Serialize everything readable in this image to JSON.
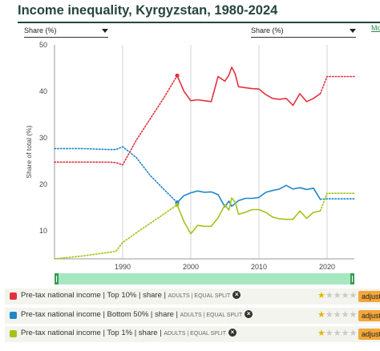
{
  "title": "Income inequality, Kyrgyzstan, 1980-2024",
  "selectors": {
    "left": "Share (%)",
    "right": "Share (%)",
    "more": "Mo"
  },
  "chart_data": {
    "type": "line",
    "ylabel": "Share of total (%)",
    "xlim": [
      1980,
      2024
    ],
    "ylim": [
      4,
      50
    ],
    "xticks": [
      1990,
      2000,
      2010,
      2020
    ],
    "yticks": [
      10,
      20,
      30,
      40,
      50
    ],
    "grid": "vertical",
    "series": [
      {
        "name": "Top 10%",
        "color": "#e0323e",
        "dotted_x": [
          1980,
          1982,
          1984,
          1986,
          1988,
          1989,
          1990,
          1992,
          1994,
          1996,
          1998
        ],
        "dotted_y": [
          24.8,
          24.8,
          24.8,
          24.8,
          24.8,
          24.7,
          24.2,
          29.5,
          34.0,
          38.5,
          43.4
        ],
        "solid_x": [
          1998,
          1999,
          2000,
          2001,
          2002,
          2003,
          2004,
          2005,
          2005.6,
          2006,
          2006.5,
          2007,
          2008,
          2009,
          2010,
          2011,
          2012,
          2013,
          2014,
          2015,
          2016,
          2017,
          2018,
          2019
        ],
        "solid_y": [
          43.4,
          40.0,
          38.0,
          38.2,
          38.0,
          37.8,
          43.2,
          42.2,
          43.5,
          45.2,
          43.8,
          41.0,
          40.8,
          40.6,
          40.5,
          39.3,
          38.5,
          38.3,
          38.5,
          37.0,
          39.5,
          37.8,
          38.5,
          39.5
        ],
        "tail_x": [
          2019,
          2020,
          2024
        ],
        "tail_y": [
          39.5,
          43.2,
          43.2
        ],
        "marker": {
          "x": 1998,
          "y": 43.4
        }
      },
      {
        "name": "Bottom 50%",
        "color": "#1f86c9",
        "dotted_x": [
          1980,
          1982,
          1984,
          1986,
          1988,
          1989,
          1990,
          1992,
          1994,
          1996,
          1998
        ],
        "dotted_y": [
          27.7,
          27.7,
          27.7,
          27.6,
          27.5,
          27.5,
          28.1,
          25.8,
          22.0,
          19.0,
          16.1
        ],
        "solid_x": [
          1998,
          1999,
          2000,
          2001,
          2002,
          2003,
          2004,
          2005,
          2005.6,
          2006,
          2007,
          2008,
          2009,
          2010,
          2011,
          2012,
          2013,
          2014,
          2015,
          2016,
          2017,
          2018,
          2019
        ],
        "solid_y": [
          16.1,
          17.6,
          18.2,
          18.6,
          18.3,
          18.4,
          17.8,
          15.2,
          16.4,
          15.3,
          16.5,
          17.0,
          17.0,
          17.2,
          18.3,
          18.7,
          19.0,
          19.8,
          19.0,
          19.3,
          18.9,
          19.2,
          16.8
        ],
        "tail_x": [
          2019,
          2020,
          2024
        ],
        "tail_y": [
          16.8,
          16.9,
          16.9
        ],
        "marker": {
          "x": 1998,
          "y": 16.1
        }
      },
      {
        "name": "Top 1%",
        "color": "#a3c31c",
        "dotted_x": [
          1980,
          1982,
          1984,
          1986,
          1988,
          1989,
          1990,
          1992,
          1994,
          1996,
          1998
        ],
        "dotted_y": [
          4.0,
          4.3,
          4.6,
          5.0,
          5.4,
          5.6,
          7.5,
          9.6,
          11.6,
          13.6,
          15.6
        ],
        "solid_x": [
          1998,
          1999,
          2000,
          2001,
          2002,
          2003,
          2004,
          2005,
          2005.6,
          2006,
          2006.5,
          2007,
          2008,
          2009,
          2010,
          2011,
          2012,
          2013,
          2014,
          2015,
          2016,
          2017,
          2018,
          2019
        ],
        "solid_y": [
          15.6,
          12.0,
          9.4,
          11.2,
          11.0,
          11.0,
          12.8,
          15.6,
          14.5,
          17.1,
          16.2,
          13.6,
          14.0,
          14.6,
          14.6,
          14.0,
          13.0,
          12.6,
          12.5,
          12.5,
          14.3,
          12.7,
          14.0,
          14.3
        ],
        "tail_x": [
          2019,
          2020,
          2024
        ],
        "tail_y": [
          14.3,
          18.1,
          18.1
        ],
        "marker": {
          "x": 1998,
          "y": 15.6
        }
      }
    ]
  },
  "legend": [
    {
      "text": "Pre-tax national income  | Top 10% | share |",
      "meta": "ADULTS | EQUAL SPLIT",
      "color": "#e0323e",
      "stars": 1,
      "adjust": "adjust"
    },
    {
      "text": "Pre-tax national income  | Bottom 50% | share |",
      "meta": "ADULTS | EQUAL SPLIT",
      "color": "#1f86c9",
      "stars": 1,
      "adjust": "adjust"
    },
    {
      "text": "Pre-tax national income  | Top 1% | share |",
      "meta": "ADULTS | EQUAL SPLIT",
      "color": "#a3c31c",
      "stars": 1,
      "adjust": "adjust"
    }
  ],
  "icons": {
    "remove": "close-circle-icon",
    "star": "star-icon",
    "handle": "drag-handle-icon"
  }
}
